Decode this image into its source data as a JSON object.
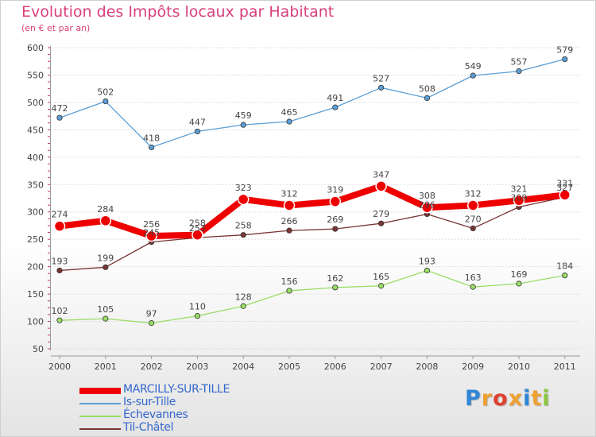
{
  "title": "Evolution des Impôts locaux par Habitant",
  "subtitle": "(en € et par an)",
  "logo": {
    "letters": [
      "P",
      "r",
      "o",
      "x",
      "i",
      "t",
      "i"
    ],
    "colors": [
      "#2f86d6",
      "#f0a030",
      "#e04030",
      "#f0a030",
      "#2f86d6",
      "#f0a030",
      "#8cc63f"
    ]
  },
  "chart_data": {
    "type": "line",
    "x": [
      "2000",
      "2001",
      "2002",
      "2003",
      "2004",
      "2005",
      "2006",
      "2007",
      "2008",
      "2009",
      "2010",
      "2011"
    ],
    "ylim": [
      50,
      600
    ],
    "yticks": [
      50,
      100,
      150,
      200,
      250,
      300,
      350,
      400,
      450,
      500,
      550,
      600
    ],
    "grid": "horizontal",
    "legend": "bottom-left",
    "series": [
      {
        "name": "Is-sur-Tille",
        "color": "#5b9ed6",
        "values": [
          472,
          502,
          418,
          447,
          459,
          465,
          491,
          527,
          508,
          549,
          557,
          579
        ],
        "labels": [
          "472",
          "502",
          "418",
          "447",
          "459",
          "465",
          "491",
          "527",
          "508",
          "549",
          "557",
          "579"
        ]
      },
      {
        "name": "Échevannes",
        "color": "#99dd66",
        "values": [
          102,
          105,
          97,
          110,
          128,
          156,
          162,
          165,
          193,
          163,
          169,
          184
        ],
        "labels": [
          "102",
          "105",
          "97",
          "110",
          "128",
          "156",
          "162",
          "165",
          "193",
          "163",
          "169",
          "184"
        ]
      },
      {
        "name": "Til-Châtel",
        "color": "#7a3535",
        "values": [
          193,
          199,
          245,
          253,
          258,
          266,
          269,
          279,
          296,
          270,
          309,
          327
        ],
        "labels": [
          "193",
          "199",
          "245",
          "253",
          "258",
          "266",
          "269",
          "279",
          "296",
          "270",
          "309",
          "327"
        ]
      },
      {
        "name": "MARCILLY-SUR-TILLE",
        "color": "#ee0000",
        "emphasis": true,
        "values": [
          274,
          284,
          256,
          258,
          323,
          312,
          319,
          347,
          308,
          312,
          321,
          331
        ],
        "labels": [
          "274",
          "284",
          "256",
          "258",
          "323",
          "312",
          "319",
          "347",
          "308",
          "312",
          "321",
          "331"
        ]
      }
    ],
    "legend_order": [
      "MARCILLY-SUR-TILLE",
      "Is-sur-Tille",
      "Échevannes",
      "Til-Châtel"
    ]
  }
}
